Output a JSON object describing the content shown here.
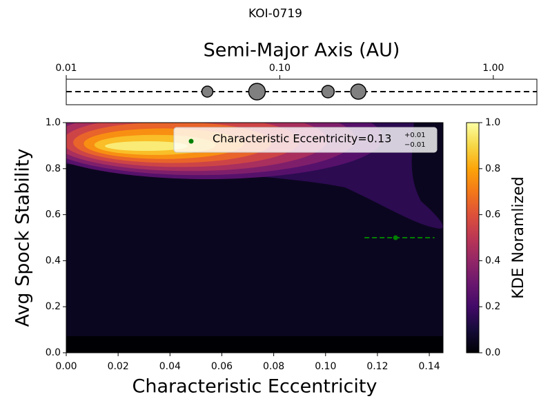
{
  "chart_data": [
    {
      "type": "scatter",
      "title": "KOI-0719",
      "xlabel": "Semi-Major Axis (AU)",
      "xscale": "log",
      "xlim": [
        0.01,
        1.6
      ],
      "xticks": [
        {
          "value": 0.01,
          "label": "0.01"
        },
        {
          "value": 0.1,
          "label": "0.10"
        },
        {
          "value": 1,
          "label": "1.00"
        }
      ],
      "x": [
        0.0458,
        0.0782,
        0.1682,
        0.2333
      ],
      "sizes": [
        8,
        12,
        9,
        11
      ],
      "color": "#808080"
    },
    {
      "type": "contour",
      "xlabel": "Characteristic Eccentricity",
      "ylabel": "Avg Spock Stability",
      "xlim": [
        0,
        0.1453
      ],
      "ylim": [
        0,
        1
      ],
      "xticks": [
        {
          "value": 0,
          "label": "0.00"
        },
        {
          "value": 0.02,
          "label": "0.02"
        },
        {
          "value": 0.04,
          "label": "0.04"
        },
        {
          "value": 0.06,
          "label": "0.06"
        },
        {
          "value": 0.08,
          "label": "0.08"
        },
        {
          "value": 0.1,
          "label": "0.10"
        },
        {
          "value": 0.12,
          "label": "0.12"
        },
        {
          "value": 0.14,
          "label": "0.14"
        }
      ],
      "yticks": [
        {
          "value": 0,
          "label": "0.0"
        },
        {
          "value": 0.2,
          "label": "0.2"
        },
        {
          "value": 0.4,
          "label": "0.4"
        },
        {
          "value": 0.6,
          "label": "0.6"
        },
        {
          "value": 0.8,
          "label": "0.8"
        },
        {
          "value": 1,
          "label": "1.0"
        }
      ],
      "colormap": "inferno",
      "levels": [
        0,
        0.1,
        0.2,
        0.3,
        0.4,
        0.5,
        0.6,
        0.7,
        0.8,
        0.9
      ],
      "colorbar": {
        "label": "KDE Noramlized",
        "lim": [
          0,
          1
        ],
        "ticks": [
          {
            "value": 0,
            "label": "0.0"
          },
          {
            "value": 0.2,
            "label": "0.2"
          },
          {
            "value": 0.4,
            "label": "0.4"
          },
          {
            "value": 0.6,
            "label": "0.6"
          },
          {
            "value": 0.8,
            "label": "0.8"
          },
          {
            "value": 1,
            "label": "1.0"
          }
        ]
      },
      "point": {
        "x": 0.127,
        "y": 0.5,
        "xerr_low": 0.012,
        "xerr_high": 0.015,
        "color": "#008000"
      },
      "legend": {
        "label": "Characteristic Eccentricity=0.13",
        "sup": "+0.01",
        "sub": "−0.01"
      }
    }
  ]
}
